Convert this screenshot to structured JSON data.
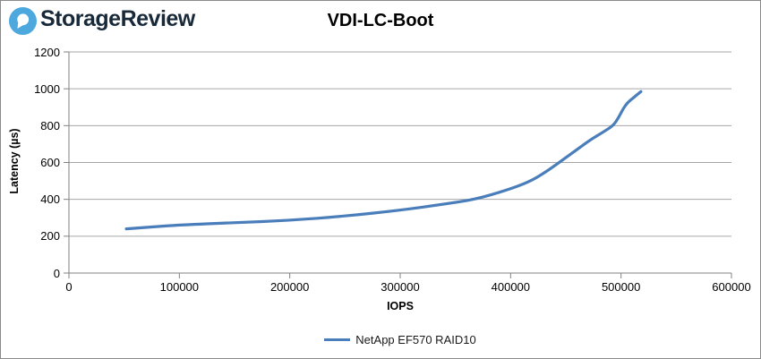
{
  "header": {
    "brand": "StorageReview"
  },
  "colors": {
    "logo_blue": "#4DA9DD",
    "brand_navy": "#18293A",
    "line_blue": "#4A7EBB",
    "grid_gray": "#A6A6A6",
    "axis_gray": "#808080",
    "border_gray": "#8A8A8A"
  },
  "chart": {
    "title": "VDI-LC-Boot",
    "y_axis": {
      "label": "Latency (µs)",
      "tick_labels": [
        "0",
        "200",
        "400",
        "600",
        "800",
        "1000",
        "1200"
      ]
    },
    "x_axis": {
      "label": "IOPS",
      "tick_labels": [
        "0",
        "100000",
        "200000",
        "300000",
        "400000",
        "500000",
        "600000"
      ]
    },
    "legend": {
      "label": "NetApp EF570 RAID10"
    }
  },
  "chart_data": {
    "type": "line",
    "title": "VDI-LC-Boot",
    "xlabel": "IOPS",
    "ylabel": "Latency (µs)",
    "xlim": [
      0,
      600000
    ],
    "ylim": [
      0,
      1200
    ],
    "x_tick_step": 100000,
    "y_tick_step": 200,
    "grid": "horizontal",
    "legend_position": "bottom",
    "series": [
      {
        "name": "NetApp EF570 RAID10",
        "color": "#4A7EBB",
        "points": [
          [
            52000,
            240
          ],
          [
            75000,
            250
          ],
          [
            100000,
            261
          ],
          [
            150000,
            273
          ],
          [
            200000,
            286
          ],
          [
            250000,
            309
          ],
          [
            300000,
            341
          ],
          [
            340000,
            374
          ],
          [
            368000,
            400
          ],
          [
            395000,
            447
          ],
          [
            417000,
            495
          ],
          [
            432000,
            549
          ],
          [
            444000,
            600
          ],
          [
            458000,
            661
          ],
          [
            472000,
            722
          ],
          [
            483000,
            762
          ],
          [
            493000,
            800
          ],
          [
            498000,
            846
          ],
          [
            502000,
            893
          ],
          [
            506000,
            926
          ],
          [
            511000,
            950
          ],
          [
            518000,
            985
          ]
        ]
      }
    ]
  }
}
